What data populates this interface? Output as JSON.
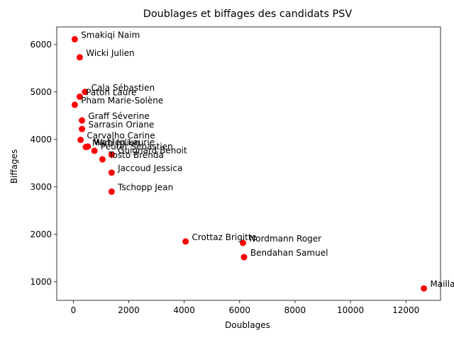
{
  "chart_data": {
    "type": "scatter",
    "title": "Doublages et biffages des candidats PSV",
    "xlabel": "Doublages",
    "ylabel": "Biffages",
    "xlim": [
      -600,
      13250
    ],
    "ylim": [
      610,
      6370
    ],
    "xticks": [
      0,
      2000,
      4000,
      6000,
      8000,
      10000,
      12000
    ],
    "yticks": [
      1000,
      2000,
      3000,
      4000,
      5000,
      6000
    ],
    "grid": false,
    "marker_color": "#ff0000",
    "points": [
      {
        "label": "Smakiqi Naim",
        "x": 50,
        "y": 6110
      },
      {
        "label": "Wicki Julien",
        "x": 230,
        "y": 5730
      },
      {
        "label": "Cala Sébastien",
        "x": 420,
        "y": 5000
      },
      {
        "label": "Paton Laure",
        "x": 230,
        "y": 4900
      },
      {
        "label": "Pham Marie-Solène",
        "x": 50,
        "y": 4730
      },
      {
        "label": "Graff Séverine",
        "x": 310,
        "y": 4400
      },
      {
        "label": "Sarrasin Oriane",
        "x": 310,
        "y": 4220
      },
      {
        "label": "Carvalho Carine",
        "x": 260,
        "y": 3990
      },
      {
        "label": "Wahlen Laurie",
        "x": 520,
        "y": 3850
      },
      {
        "label": "Marti Julien",
        "x": 450,
        "y": 3840
      },
      {
        "label": "Peutet Sébastien",
        "x": 760,
        "y": 3760
      },
      {
        "label": "Guignard Benoit",
        "x": 1380,
        "y": 3680
      },
      {
        "label": "Tosto Brenda",
        "x": 1050,
        "y": 3580
      },
      {
        "label": "Jaccoud Jessica",
        "x": 1380,
        "y": 3300
      },
      {
        "label": "Tschopp Jean",
        "x": 1380,
        "y": 2900
      },
      {
        "label": "Crottaz Brigitte",
        "x": 4050,
        "y": 1850
      },
      {
        "label": "Nordmann Roger",
        "x": 6120,
        "y": 1820
      },
      {
        "label": "Bendahan Samuel",
        "x": 6160,
        "y": 1520
      },
      {
        "label": "Maillard Pierre-Yves",
        "x": 12650,
        "y": 860
      }
    ]
  }
}
